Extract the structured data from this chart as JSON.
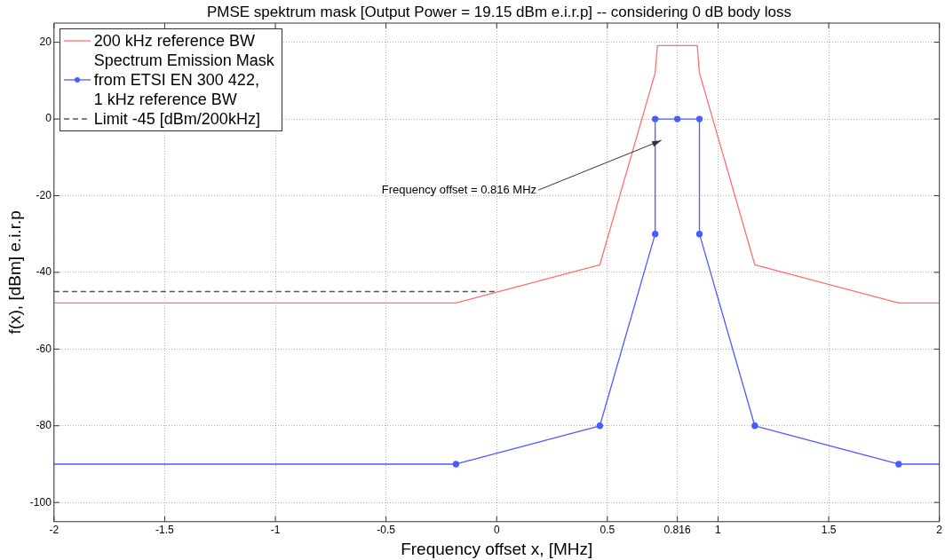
{
  "chart_data": {
    "type": "line",
    "title": "PMSE spektrum mask [Output Power = 19.15 dBm e.i.r.p] -- considering 0 dB body loss",
    "xlabel": "Frequency offset x, [MHz]",
    "ylabel": "f(x), [dBm] e.i.r.p",
    "series": [
      {
        "name": "200 kHz reference BW",
        "color": "#ff6f6f",
        "marker": "none",
        "x": [
          -2,
          -0.184,
          0.466,
          0.716,
          0.726,
          0.906,
          0.916,
          1.166,
          1.816,
          2
        ],
        "values": [
          -48,
          -48,
          -38,
          12,
          19.15,
          19.15,
          12,
          -38,
          -48,
          -48
        ]
      },
      {
        "name": "Spectrum Emission Mask\nfrom ETSI EN 300 422,\n1 kHz reference BW",
        "color": "#4b5cff",
        "marker": "circle",
        "x": [
          -0.184,
          0.466,
          0.716,
          0.716,
          0.816,
          0.916,
          0.916,
          1.166,
          1.816
        ],
        "values": [
          -90,
          -80,
          -30,
          0,
          0,
          0,
          -30,
          -80,
          -90
        ]
      },
      {
        "color": "#4b5cff",
        "marker": "none",
        "x": [
          -2,
          -0.184,
          0.816,
          1.816,
          2
        ],
        "values": [
          -90,
          -90,
          null,
          -90,
          -90
        ]
      },
      {
        "name": "Limit -45 [dBm/200kHz]",
        "color": "#555555",
        "marker": "none",
        "line_style": "dashed",
        "x": [
          -2,
          0
        ],
        "values": [
          -45,
          -45
        ]
      }
    ],
    "xlim": [
      -2,
      2
    ],
    "xticks": [
      -2,
      -1.5,
      -1,
      -0.5,
      0,
      0.5,
      0.816,
      1,
      1.5,
      2
    ],
    "ylim": [
      -105,
      25
    ],
    "yticks": [
      -100,
      -80,
      -60,
      -40,
      -20,
      0,
      20
    ],
    "grid": true,
    "legend": "top left",
    "annotations": [
      "Frequency offset = 0.816 MHz"
    ]
  }
}
